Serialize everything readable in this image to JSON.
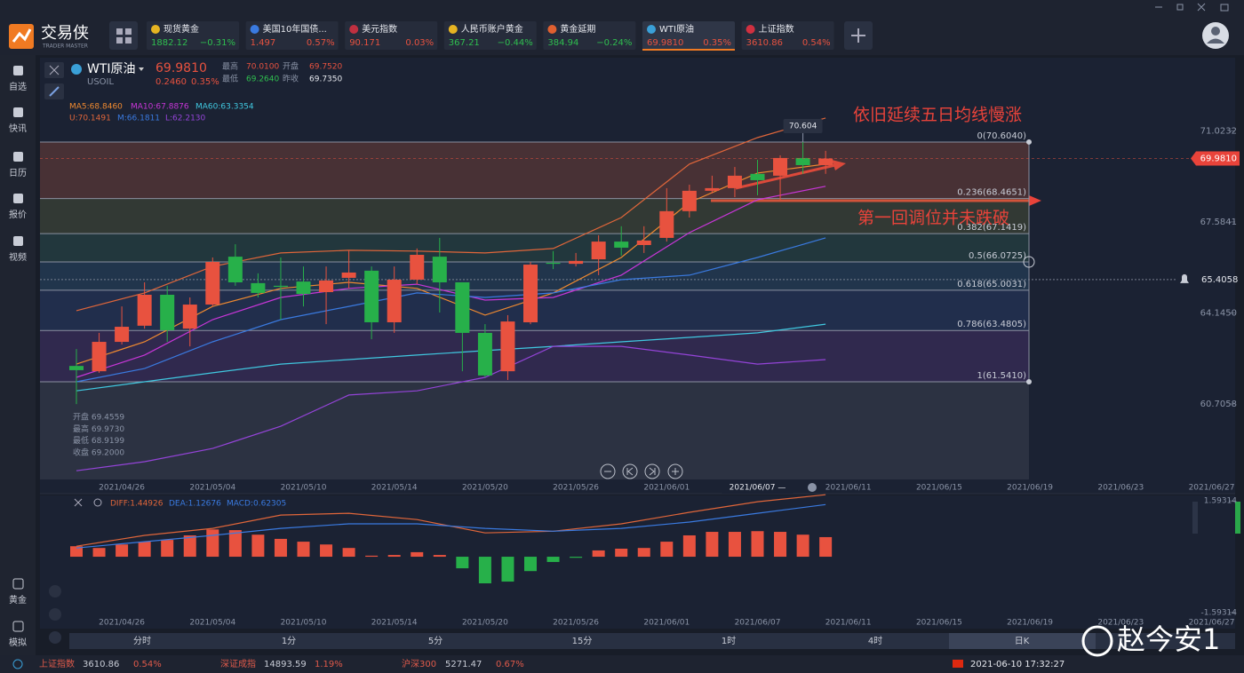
{
  "app": {
    "logo": "交易侠",
    "logo_sub": "TRADER MASTER"
  },
  "tickers": [
    {
      "name": "现货黄金",
      "price": "1882.12",
      "change": "−0.31%"
    },
    {
      "name": "美国10年国债...",
      "price": "1.497",
      "change": "0.57%"
    },
    {
      "name": "美元指数",
      "price": "90.171",
      "change": "0.03%"
    },
    {
      "name": "人民币账户黄金",
      "price": "367.21",
      "change": "−0.44%"
    },
    {
      "name": "黄金延期",
      "price": "384.94",
      "change": "−0.24%"
    },
    {
      "name": "WTI原油",
      "price": "69.9810",
      "change": "0.35%"
    },
    {
      "name": "上证指数",
      "price": "3610.86",
      "change": "0.54%"
    }
  ],
  "sidebar": [
    "自选",
    "快讯",
    "日历",
    "报价",
    "视频"
  ],
  "sidebar_bottom": [
    "黄金",
    "模拟"
  ],
  "quote": {
    "name": "WTI原油",
    "code": "USOIL",
    "price": "69.9810",
    "change": "0.2460",
    "change_pct": "0.35%",
    "high_label": "最高",
    "high": "70.0100",
    "open_label": "开盘",
    "open": "69.7520",
    "low_label": "最低",
    "low": "69.2640",
    "prev_label": "昨收",
    "prev": "69.7350"
  },
  "chart_data": {
    "type": "candlestick",
    "x_labels": [
      "2021/04/26",
      "2021/05/04",
      "2021/05/10",
      "2021/05/14",
      "2021/05/20",
      "2021/05/26",
      "2021/06/01",
      "2021/06/07",
      "2021/06/11",
      "2021/06/15",
      "2021/06/19",
      "2021/06/23",
      "2021/06/27"
    ],
    "open": [
      62.14,
      61.94,
      63.05,
      63.66,
      64.83,
      63.55,
      64.46,
      66.27,
      65.27,
      65.17,
      65.33,
      64.93,
      65.47,
      65.74,
      63.79,
      65.4,
      66.27,
      65.3,
      63.39,
      61.94,
      63.79,
      66.04,
      66.0,
      66.17,
      66.84,
      66.71,
      66.98,
      67.99,
      68.76,
      68.86,
      69.4,
      69.33,
      70.0,
      69.73
    ],
    "high": [
      62.78,
      63.39,
      64.39,
      65.3,
      65.17,
      64.73,
      66.24,
      66.74,
      65.64,
      66.24,
      65.9,
      65.9,
      66.51,
      65.9,
      65.9,
      66.58,
      66.98,
      65.3,
      63.72,
      64.06,
      66.07,
      66.48,
      66.41,
      67.08,
      67.42,
      67.42,
      68.86,
      68.99,
      69.33,
      69.66,
      69.93,
      70.1,
      70.6,
      70.27
    ],
    "low": [
      60.7,
      61.88,
      62.95,
      63.55,
      63.05,
      62.88,
      64.39,
      65.17,
      64.73,
      63.89,
      64.39,
      63.72,
      65.07,
      63.15,
      63.39,
      65.23,
      64.16,
      61.94,
      61.71,
      61.61,
      63.72,
      65.8,
      65.9,
      65.57,
      66.31,
      66.41,
      66.84,
      67.75,
      68.66,
      68.52,
      68.59,
      68.42,
      69.4,
      69.4
    ],
    "close": [
      61.98,
      63.05,
      63.62,
      64.83,
      63.49,
      64.46,
      66.07,
      65.3,
      64.9,
      65.13,
      64.86,
      65.37,
      65.67,
      63.79,
      65.4,
      66.34,
      65.3,
      63.39,
      61.78,
      63.82,
      65.97,
      66.0,
      66.11,
      66.84,
      66.61,
      66.88,
      67.99,
      68.76,
      68.86,
      69.33,
      69.16,
      70.0,
      69.73,
      69.98
    ],
    "up_color": "#e8523f",
    "down_color": "#27b04a",
    "ylim": [
      57.85,
      73.79
    ],
    "yticks": [
      71.0232,
      67.5841,
      64.145,
      60.7058
    ],
    "ytick_labels": [
      "71.0232",
      "67.5841",
      "64.1450",
      "60.7058"
    ],
    "lines": [
      {
        "label": "MA5:68.8460",
        "color": "#f08a30",
        "x": [
          0,
          3,
          6,
          9,
          12,
          15,
          18,
          21,
          24,
          27,
          30,
          33
        ],
        "values": [
          62.21,
          63.05,
          64.39,
          65.07,
          65.3,
          65.07,
          64.06,
          64.9,
          66.24,
          68.32,
          69.43,
          69.77
        ]
      },
      {
        "label": "MA10:67.8876",
        "color": "#c836d8",
        "x": [
          0,
          3,
          6,
          9,
          12,
          15,
          18,
          21,
          24,
          27,
          30,
          33
        ],
        "values": [
          61.71,
          62.55,
          63.89,
          64.73,
          65.07,
          65.23,
          64.63,
          64.73,
          65.57,
          67.18,
          68.42,
          68.93
        ]
      },
      {
        "label": "MA60:63.3354",
        "color": "#40c8e0",
        "x": [
          0,
          3,
          6,
          9,
          12,
          15,
          18,
          21,
          24,
          27,
          30,
          33
        ],
        "values": [
          61.2,
          61.54,
          61.88,
          62.21,
          62.38,
          62.55,
          62.72,
          62.88,
          63.05,
          63.22,
          63.39,
          63.72
        ]
      },
      {
        "label": "U:70.1491",
        "color": "#e0663a",
        "x": [
          0,
          3,
          6,
          9,
          12,
          15,
          18,
          21,
          24,
          27,
          30,
          33
        ],
        "values": [
          64.23,
          64.9,
          65.9,
          66.41,
          66.51,
          66.48,
          66.41,
          66.58,
          67.75,
          69.77,
          70.77,
          71.51
        ]
      },
      {
        "label": "M:66.1811",
        "color": "#3a7ae0",
        "x": [
          0,
          3,
          6,
          9,
          12,
          15,
          18,
          21,
          24,
          27,
          30,
          33
        ],
        "values": [
          61.54,
          62.04,
          63.05,
          63.89,
          64.39,
          64.9,
          64.73,
          64.9,
          65.4,
          65.57,
          66.24,
          66.98
        ]
      },
      {
        "label": "L:62.2130",
        "color": "#9444d8",
        "x": [
          0,
          3,
          6,
          9,
          12,
          15,
          18,
          21,
          24,
          27,
          30,
          33
        ],
        "values": [
          58.18,
          58.52,
          59.02,
          59.86,
          61.04,
          61.2,
          61.71,
          62.88,
          62.88,
          62.55,
          62.21,
          62.38
        ]
      }
    ],
    "fib_levels": [
      {
        "value": 70.604,
        "label": "0(70.6040)"
      },
      {
        "value": 68.4651,
        "label": "0.236(68.4651)"
      },
      {
        "value": 67.1419,
        "label": "0.382(67.1419)"
      },
      {
        "value": 66.0725,
        "label": "0.5(66.0725)"
      },
      {
        "value": 65.0031,
        "label": "0.618(65.0031)"
      },
      {
        "value": 63.4805,
        "label": "0.786(63.4805)"
      },
      {
        "value": 61.541,
        "label": "1(61.5410)"
      }
    ],
    "current_price": {
      "value": 69.981,
      "label": "69.9810"
    },
    "alert_price": 65.4058,
    "max_marker": 70.604,
    "annotations": [
      "依旧延续五日均线慢涨",
      "第一回调位并未跌破"
    ],
    "crosshair_info": [
      "开盘 69.4559",
      "最高 69.9730",
      "最低 68.9199",
      "收盘 69.2000"
    ],
    "crosshair_date": "2021/06/07 —"
  },
  "macd": {
    "hist": {
      "label": "MACD:0.62305",
      "values": [
        0.3,
        0.25,
        0.35,
        0.43,
        0.48,
        0.61,
        0.78,
        0.76,
        0.63,
        0.51,
        0.43,
        0.35,
        0.25,
        0.03,
        0.05,
        0.13,
        0.05,
        -0.33,
        -0.76,
        -0.71,
        -0.41,
        -0.15,
        -0.03,
        0.18,
        0.23,
        0.25,
        0.43,
        0.61,
        0.71,
        0.71,
        0.73,
        0.71,
        0.63,
        0.56
      ]
    },
    "dif": {
      "label": "DIFF:1.44926",
      "color": "#e0663a",
      "x": [
        0,
        3,
        6,
        9,
        12,
        15,
        18,
        21,
        24,
        27,
        30,
        33
      ],
      "values": [
        0.3,
        0.61,
        0.81,
        1.19,
        1.24,
        1.06,
        0.68,
        0.73,
        0.94,
        1.27,
        1.57,
        1.77
      ]
    },
    "dea": {
      "label": "DEA:1.12676",
      "color": "#3a7ae0",
      "x": [
        0,
        3,
        6,
        9,
        12,
        15,
        18,
        21,
        24,
        27,
        30,
        33
      ],
      "values": [
        0.25,
        0.43,
        0.61,
        0.81,
        0.94,
        0.94,
        0.81,
        0.73,
        0.81,
        0.99,
        1.24,
        1.49
      ]
    },
    "ylim": [
      -1.85,
      1.7
    ],
    "yticks": [
      1.59314,
      -1.59314
    ]
  },
  "periods": [
    "分时",
    "1分",
    "5分",
    "15分",
    "1时",
    "4时",
    "日K"
  ],
  "status": [
    {
      "name": "上证指数",
      "price": "3610.86",
      "change": "0.54%"
    },
    {
      "name": "深证成指",
      "price": "14893.59",
      "change": "1.19%"
    },
    {
      "name": "沪深300",
      "price": "5271.47",
      "change": "0.67%"
    }
  ],
  "datetime": "2021-06-10 17:32:27",
  "watermark": "赵今安1"
}
